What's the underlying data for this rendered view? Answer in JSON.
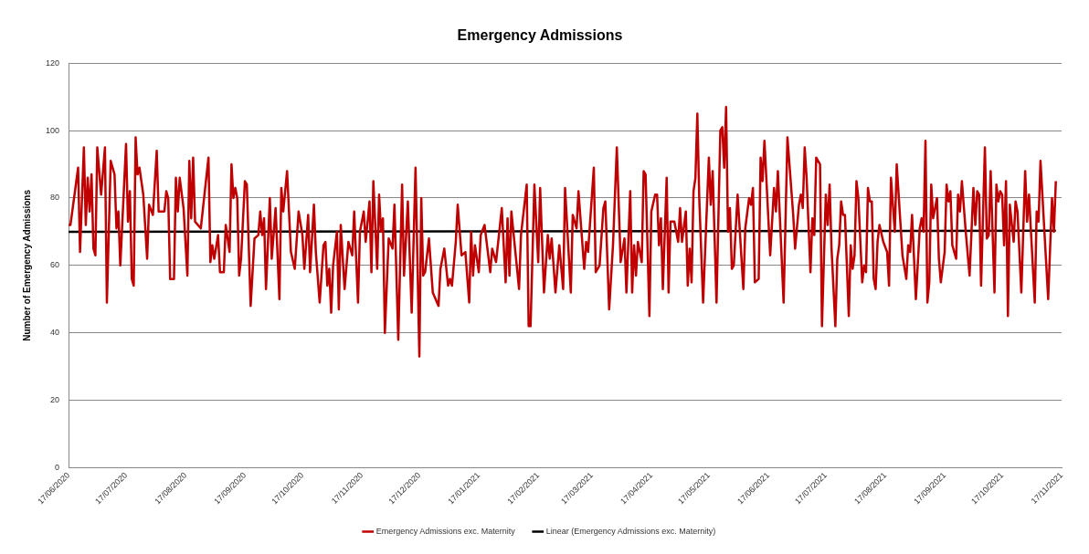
{
  "chart_data": {
    "type": "line",
    "title": "Emergency Admissions",
    "ylabel": "Number of Emergency Admissions",
    "xlim": [
      "2020-06-17",
      "2021-11-17"
    ],
    "xticks": [
      {
        "value": "2020-06-17",
        "label": "17/06/2020"
      },
      {
        "value": "2020-07-17",
        "label": "17/07/2020"
      },
      {
        "value": "2020-08-17",
        "label": "17/08/2020"
      },
      {
        "value": "2020-09-17",
        "label": "17/09/2020"
      },
      {
        "value": "2020-10-17",
        "label": "17/10/2020"
      },
      {
        "value": "2020-11-17",
        "label": "17/11/2020"
      },
      {
        "value": "2020-12-17",
        "label": "17/12/2020"
      },
      {
        "value": "2021-01-17",
        "label": "17/01/2021"
      },
      {
        "value": "2021-02-17",
        "label": "17/02/2021"
      },
      {
        "value": "2021-03-17",
        "label": "17/03/2021"
      },
      {
        "value": "2021-04-17",
        "label": "17/04/2021"
      },
      {
        "value": "2021-05-17",
        "label": "17/05/2021"
      },
      {
        "value": "2021-06-17",
        "label": "17/06/2021"
      },
      {
        "value": "2021-07-17",
        "label": "17/07/2021"
      },
      {
        "value": "2021-08-17",
        "label": "17/08/2021"
      },
      {
        "value": "2021-09-17",
        "label": "17/09/2021"
      },
      {
        "value": "2021-10-17",
        "label": "17/10/2021"
      },
      {
        "value": "2021-11-17",
        "label": "17/11/2021"
      }
    ],
    "ylim": [
      0,
      120
    ],
    "yticks": [
      0,
      20,
      40,
      60,
      80,
      100,
      120
    ],
    "grid": "y",
    "legend": "bottom",
    "marker": "none",
    "line_style": "solid",
    "series": [
      {
        "name": "Emergency Admissions exc. Maternity",
        "color": "#c00000",
        "x": [
          "2020-06-17",
          "2020-06-18",
          "2020-06-22",
          "2020-06-23",
          "2020-06-25",
          "2020-06-26",
          "2020-06-27",
          "2020-06-28",
          "2020-06-29",
          "2020-06-30",
          "2020-07-01",
          "2020-07-02",
          "2020-07-04",
          "2020-07-06",
          "2020-07-07",
          "2020-07-09",
          "2020-07-11",
          "2020-07-12",
          "2020-07-13",
          "2020-07-14",
          "2020-07-17",
          "2020-07-18",
          "2020-07-19",
          "2020-07-20",
          "2020-07-21",
          "2020-07-22",
          "2020-07-23",
          "2020-07-24",
          "2020-07-26",
          "2020-07-28",
          "2020-07-29",
          "2020-07-31",
          "2020-08-02",
          "2020-08-03",
          "2020-08-06",
          "2020-08-07",
          "2020-08-08",
          "2020-08-09",
          "2020-08-11",
          "2020-08-12",
          "2020-08-13",
          "2020-08-14",
          "2020-08-16",
          "2020-08-18",
          "2020-08-19",
          "2020-08-20",
          "2020-08-21",
          "2020-08-22",
          "2020-08-25",
          "2020-08-29",
          "2020-08-30",
          "2020-08-31",
          "2020-09-01",
          "2020-09-03",
          "2020-09-04",
          "2020-09-06",
          "2020-09-07",
          "2020-09-09",
          "2020-09-10",
          "2020-09-11",
          "2020-09-12",
          "2020-09-13",
          "2020-09-14",
          "2020-09-15",
          "2020-09-17",
          "2020-09-18",
          "2020-09-20",
          "2020-09-22",
          "2020-09-24",
          "2020-09-25",
          "2020-09-26",
          "2020-09-27",
          "2020-09-28",
          "2020-09-30",
          "2020-10-01",
          "2020-10-03",
          "2020-10-05",
          "2020-10-06",
          "2020-10-07",
          "2020-10-09",
          "2020-10-11",
          "2020-10-13",
          "2020-10-15",
          "2020-10-17",
          "2020-10-18",
          "2020-10-20",
          "2020-10-21",
          "2020-10-23",
          "2020-10-24",
          "2020-10-26",
          "2020-10-28",
          "2020-10-29",
          "2020-10-30",
          "2020-10-31",
          "2020-11-01",
          "2020-11-02",
          "2020-11-04",
          "2020-11-05",
          "2020-11-06",
          "2020-11-08",
          "2020-11-10",
          "2020-11-12",
          "2020-11-13",
          "2020-11-15",
          "2020-11-16",
          "2020-11-18",
          "2020-11-19",
          "2020-11-21",
          "2020-11-22",
          "2020-11-23",
          "2020-11-25",
          "2020-11-26",
          "2020-11-27",
          "2020-11-28",
          "2020-11-29",
          "2020-12-01",
          "2020-12-03",
          "2020-12-04",
          "2020-12-06",
          "2020-12-08",
          "2020-12-09",
          "2020-12-11",
          "2020-12-13",
          "2020-12-15",
          "2020-12-17",
          "2020-12-18",
          "2020-12-19",
          "2020-12-20",
          "2020-12-22",
          "2020-12-24",
          "2020-12-27",
          "2020-12-28",
          "2020-12-30",
          "2021-01-01",
          "2021-01-02",
          "2021-01-03",
          "2021-01-05",
          "2021-01-06",
          "2021-01-08",
          "2021-01-10",
          "2021-01-12",
          "2021-01-13",
          "2021-01-14",
          "2021-01-15",
          "2021-01-17",
          "2021-01-18",
          "2021-01-20",
          "2021-01-23",
          "2021-01-24",
          "2021-01-26",
          "2021-01-29",
          "2021-01-31",
          "2021-02-01",
          "2021-02-02",
          "2021-02-03",
          "2021-02-07",
          "2021-02-08",
          "2021-02-11",
          "2021-02-12",
          "2021-02-13",
          "2021-02-15",
          "2021-02-17",
          "2021-02-18",
          "2021-02-20",
          "2021-02-22",
          "2021-02-23",
          "2021-02-24",
          "2021-02-26",
          "2021-02-28",
          "2021-03-02",
          "2021-03-03",
          "2021-03-06",
          "2021-03-07",
          "2021-03-09",
          "2021-03-10",
          "2021-03-13",
          "2021-03-14",
          "2021-03-15",
          "2021-03-18",
          "2021-03-19",
          "2021-03-21",
          "2021-03-23",
          "2021-03-24",
          "2021-03-26",
          "2021-03-28",
          "2021-03-30",
          "2021-04-01",
          "2021-04-03",
          "2021-04-04",
          "2021-04-06",
          "2021-04-07",
          "2021-04-08",
          "2021-04-09",
          "2021-04-10",
          "2021-04-12",
          "2021-04-13",
          "2021-04-14",
          "2021-04-16",
          "2021-04-17",
          "2021-04-19",
          "2021-04-20",
          "2021-04-21",
          "2021-04-22",
          "2021-04-23",
          "2021-04-25",
          "2021-04-26",
          "2021-04-27",
          "2021-04-29",
          "2021-05-01",
          "2021-05-02",
          "2021-05-03",
          "2021-05-05",
          "2021-05-06",
          "2021-05-07",
          "2021-05-08",
          "2021-05-09",
          "2021-05-10",
          "2021-05-11",
          "2021-05-12",
          "2021-05-14",
          "2021-05-17",
          "2021-05-18",
          "2021-05-19",
          "2021-05-21",
          "2021-05-23",
          "2021-05-24",
          "2021-05-25",
          "2021-05-26",
          "2021-05-27",
          "2021-05-28",
          "2021-05-29",
          "2021-05-30",
          "2021-06-01",
          "2021-06-04",
          "2021-06-05",
          "2021-06-07",
          "2021-06-08",
          "2021-06-09",
          "2021-06-10",
          "2021-06-12",
          "2021-06-13",
          "2021-06-14",
          "2021-06-15",
          "2021-06-18",
          "2021-06-20",
          "2021-06-21",
          "2021-06-22",
          "2021-06-25",
          "2021-06-27",
          "2021-06-30",
          "2021-07-01",
          "2021-07-03",
          "2021-07-04",
          "2021-07-05",
          "2021-07-06",
          "2021-07-07",
          "2021-07-09",
          "2021-07-10",
          "2021-07-11",
          "2021-07-12",
          "2021-07-14",
          "2021-07-15",
          "2021-07-17",
          "2021-07-18",
          "2021-07-19",
          "2021-07-20",
          "2021-07-22",
          "2021-07-23",
          "2021-07-24",
          "2021-07-25",
          "2021-07-26",
          "2021-07-27",
          "2021-07-29",
          "2021-07-30",
          "2021-07-31",
          "2021-08-01",
          "2021-08-02",
          "2021-08-03",
          "2021-08-05",
          "2021-08-06",
          "2021-08-07",
          "2021-08-08",
          "2021-08-09",
          "2021-08-10",
          "2021-08-11",
          "2021-08-12",
          "2021-08-13",
          "2021-08-14",
          "2021-08-16",
          "2021-08-18",
          "2021-08-19",
          "2021-08-20",
          "2021-08-22",
          "2021-08-23",
          "2021-08-26",
          "2021-08-28",
          "2021-08-29",
          "2021-08-30",
          "2021-08-31",
          "2021-09-02",
          "2021-09-04",
          "2021-09-05",
          "2021-09-06",
          "2021-09-07",
          "2021-09-08",
          "2021-09-09",
          "2021-09-10",
          "2021-09-11",
          "2021-09-13",
          "2021-09-14",
          "2021-09-15",
          "2021-09-17",
          "2021-09-18",
          "2021-09-19",
          "2021-09-20",
          "2021-09-21",
          "2021-09-23",
          "2021-09-24",
          "2021-09-25",
          "2021-09-26",
          "2021-09-28",
          "2021-09-30",
          "2021-10-02",
          "2021-10-03",
          "2021-10-04",
          "2021-10-05",
          "2021-10-06",
          "2021-10-08",
          "2021-10-09",
          "2021-10-10",
          "2021-10-11",
          "2021-10-13",
          "2021-10-14",
          "2021-10-15",
          "2021-10-16",
          "2021-10-17",
          "2021-10-18",
          "2021-10-19",
          "2021-10-20",
          "2021-10-21",
          "2021-10-23",
          "2021-10-24",
          "2021-10-25",
          "2021-10-27",
          "2021-10-29",
          "2021-10-30",
          "2021-10-31",
          "2021-11-03",
          "2021-11-04",
          "2021-11-05",
          "2021-11-06",
          "2021-11-10",
          "2021-11-12",
          "2021-11-13",
          "2021-11-14"
        ],
        "values": [
          72,
          72,
          89,
          64,
          95,
          72,
          86,
          76,
          87,
          65,
          63,
          95,
          81,
          95,
          49,
          91,
          87,
          71,
          76,
          60,
          96,
          73,
          82,
          56,
          54,
          98,
          87,
          89,
          81,
          62,
          78,
          75,
          94,
          76,
          76,
          82,
          80,
          56,
          56,
          86,
          76,
          86,
          77,
          57,
          91,
          74,
          92,
          73,
          71,
          92,
          61,
          66,
          62,
          69,
          58,
          58,
          72,
          64,
          90,
          80,
          83,
          80,
          57,
          62,
          85,
          84,
          48,
          68,
          69,
          76,
          69,
          74,
          53,
          80,
          62,
          77,
          50,
          83,
          76,
          88,
          64,
          59,
          76,
          69,
          59,
          75,
          58,
          78,
          64,
          49,
          66,
          67,
          54,
          59,
          46,
          60,
          70,
          47,
          72,
          53,
          67,
          63,
          76,
          49,
          70,
          76,
          67,
          79,
          58,
          85,
          59,
          81,
          70,
          74,
          40,
          68,
          65,
          78,
          38,
          84,
          57,
          79,
          46,
          89,
          33,
          80,
          57,
          58,
          68,
          52,
          48,
          59,
          65,
          54,
          56,
          54,
          67,
          78,
          63,
          64,
          49,
          70,
          57,
          66,
          58,
          69,
          72,
          58,
          65,
          61,
          77,
          55,
          74,
          57,
          76,
          53,
          69,
          84,
          42,
          42,
          84,
          61,
          83,
          52,
          69,
          62,
          68,
          52,
          66,
          53,
          83,
          52,
          75,
          71,
          82,
          59,
          67,
          64,
          89,
          58,
          60,
          77,
          79,
          47,
          66,
          95,
          61,
          68,
          52,
          82,
          52,
          66,
          57,
          67,
          61,
          88,
          87,
          45,
          76,
          81,
          81,
          66,
          74,
          53,
          86,
          52,
          73,
          73,
          67,
          77,
          67,
          76,
          54,
          65,
          55,
          82,
          86,
          105,
          80,
          49,
          92,
          78,
          88,
          49,
          100,
          101,
          89,
          107,
          70,
          77,
          59,
          60,
          81,
          53,
          71,
          80,
          78,
          83,
          55,
          56,
          92,
          85,
          97,
          63,
          83,
          76,
          88,
          49,
          98,
          75,
          65,
          78,
          81,
          77,
          95,
          86,
          58,
          74,
          69,
          92,
          90,
          42,
          81,
          72,
          84,
          65,
          42,
          62,
          66,
          79,
          75,
          75,
          45,
          66,
          59,
          63,
          85,
          80,
          55,
          60,
          58,
          83,
          79,
          79,
          56,
          53,
          67,
          72,
          67,
          64,
          54,
          86,
          70,
          90,
          63,
          56,
          66,
          64,
          75,
          50,
          71,
          74,
          70,
          97,
          49,
          55,
          84,
          74,
          80,
          62,
          55,
          64,
          84,
          79,
          82,
          66,
          62,
          81,
          76,
          85,
          70,
          57,
          83,
          72,
          82,
          81,
          54,
          95,
          68,
          69,
          88,
          52,
          84,
          79,
          82,
          81,
          66,
          85,
          45,
          78,
          67,
          79,
          76,
          52,
          88,
          73,
          81,
          49,
          76,
          73,
          91,
          50,
          80,
          70,
          85
        ]
      },
      {
        "name": "Linear (Emergency Admissions exc. Maternity)",
        "color": "#000000",
        "x": [
          "2020-06-17",
          "2021-11-14"
        ],
        "values": [
          70,
          70.3
        ]
      }
    ]
  }
}
